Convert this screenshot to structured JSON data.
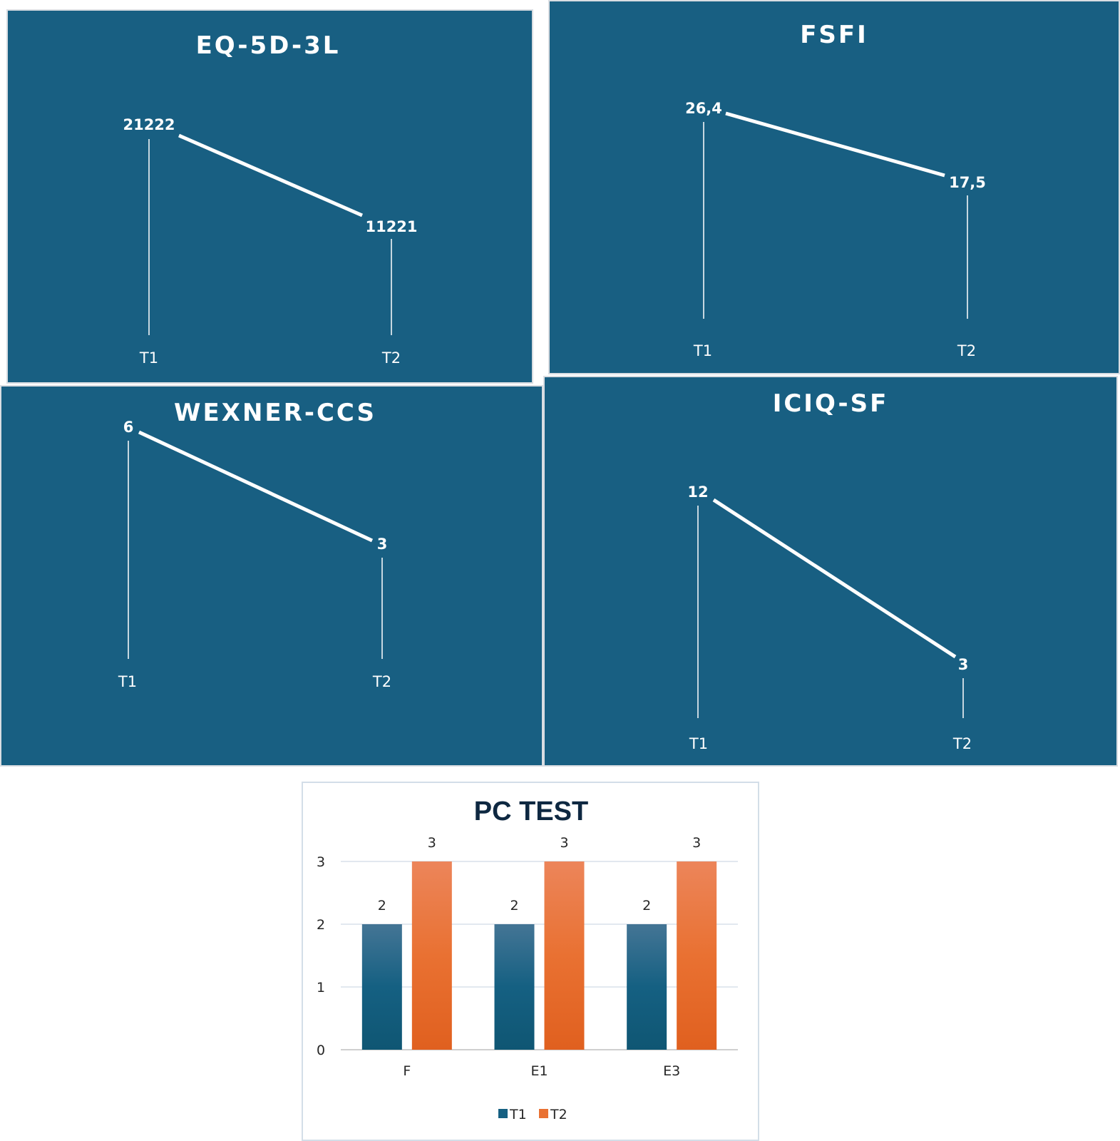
{
  "chart_data": [
    {
      "type": "line",
      "title": "EQ-5D-3L",
      "categories": [
        "T1",
        "T2"
      ],
      "values": [
        21222,
        11221
      ],
      "value_labels": [
        "21222",
        "11221"
      ]
    },
    {
      "type": "line",
      "title": "FSFI",
      "categories": [
        "T1",
        "T2"
      ],
      "values": [
        26.4,
        17.5
      ],
      "value_labels": [
        "26,4",
        "17,5"
      ]
    },
    {
      "type": "line",
      "title": "WEXNER-CCS",
      "categories": [
        "T1",
        "T2"
      ],
      "values": [
        6,
        3
      ],
      "value_labels": [
        "6",
        "3"
      ]
    },
    {
      "type": "line",
      "title": "ICIQ-SF",
      "categories": [
        "T1",
        "T2"
      ],
      "values": [
        12,
        3
      ],
      "value_labels": [
        "12",
        "3"
      ]
    },
    {
      "type": "bar",
      "title": "PC TEST",
      "categories": [
        "F",
        "E1",
        "E3"
      ],
      "series": [
        {
          "name": "T1",
          "values": [
            2,
            2,
            2
          ],
          "color": "#156082"
        },
        {
          "name": "T2",
          "values": [
            3,
            3,
            3
          ],
          "color": "#e97132"
        }
      ],
      "ylim": [
        0,
        3
      ],
      "yticks": [
        "0",
        "1",
        "2",
        "3"
      ],
      "grid": true,
      "legend": "bottom"
    }
  ],
  "colors": {
    "panel_background": "#185f82",
    "line": "#ffffff",
    "t1_bar": "#156082",
    "t2_bar": "#e97132"
  }
}
